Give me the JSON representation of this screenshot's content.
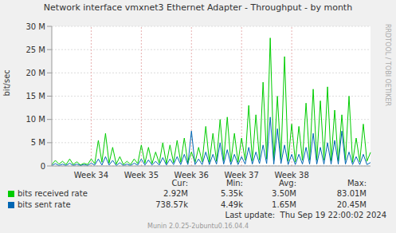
{
  "chart_data": {
    "type": "line",
    "title": "Network interface vmxnet3 Ethernet Adapter - Throughput - by month",
    "y_label": "bit/sec",
    "side_text": "RRDTOOL / TOBI OETIKER",
    "categories": [
      null,
      null,
      null,
      null,
      null,
      null,
      null,
      null,
      null,
      null,
      null,
      "Week 34",
      null,
      null,
      null,
      null,
      null,
      null,
      null,
      null,
      null,
      null,
      null,
      null,
      null,
      "Week 35",
      null,
      null,
      null,
      null,
      null,
      null,
      null,
      null,
      null,
      null,
      null,
      null,
      null,
      "Week 36",
      null,
      null,
      null,
      null,
      null,
      null,
      null,
      null,
      null,
      null,
      null,
      null,
      null,
      "Week 37",
      null,
      null,
      null,
      null,
      null,
      null,
      null,
      null,
      null,
      null,
      null,
      null,
      null,
      "Week 38",
      null,
      null,
      null,
      null,
      null,
      null,
      null,
      null,
      null,
      null,
      null,
      null,
      null,
      null,
      null,
      null,
      null,
      null,
      null,
      null,
      null,
      null
    ],
    "series": [
      {
        "name": "bits received rate",
        "color": "#00cc00",
        "values": [
          300000,
          1200000,
          400000,
          1000000,
          300000,
          1500000,
          300000,
          900000,
          200000,
          600000,
          300000,
          1500000,
          500000,
          5500000,
          800000,
          7000000,
          600000,
          4000000,
          400000,
          2000000,
          300000,
          1000000,
          300000,
          1500000,
          500000,
          4500000,
          600000,
          4000000,
          500000,
          3000000,
          600000,
          5000000,
          500000,
          4500000,
          700000,
          5500000,
          800000,
          6000000,
          600000,
          3000000,
          700000,
          4000000,
          900000,
          8500000,
          800000,
          7000000,
          1000000,
          10000000,
          1100000,
          10500000,
          900000,
          7000000,
          800000,
          6000000,
          1200000,
          13000000,
          1100000,
          11000000,
          1300000,
          18000000,
          1500000,
          27500000,
          1200000,
          15000000,
          1400000,
          23500000,
          1000000,
          9000000,
          900000,
          8500000,
          1200000,
          13500000,
          1300000,
          16500000,
          1200000,
          14000000,
          1300000,
          17000000,
          1100000,
          12000000,
          1000000,
          11000000,
          1200000,
          15000000,
          800000,
          6000000,
          900000,
          9000000,
          1000000,
          2920000
        ]
      },
      {
        "name": "bits sent rate",
        "color": "#0066b3",
        "values": [
          100000,
          500000,
          100000,
          400000,
          100000,
          600000,
          100000,
          400000,
          100000,
          300000,
          100000,
          600000,
          200000,
          1500000,
          200000,
          2000000,
          200000,
          1200000,
          100000,
          700000,
          100000,
          400000,
          100000,
          600000,
          200000,
          1500000,
          200000,
          1300000,
          200000,
          1000000,
          200000,
          1800000,
          200000,
          1500000,
          300000,
          2000000,
          300000,
          2500000,
          300000,
          7500000,
          300000,
          1500000,
          300000,
          3000000,
          300000,
          2500000,
          400000,
          5000000,
          400000,
          3500000,
          300000,
          2500000,
          300000,
          2000000,
          400000,
          4000000,
          400000,
          3000000,
          500000,
          4500000,
          500000,
          10500000,
          400000,
          8000000,
          500000,
          4500000,
          300000,
          2500000,
          300000,
          2500000,
          400000,
          4000000,
          400000,
          7000000,
          400000,
          4000000,
          400000,
          5000000,
          400000,
          5500000,
          400000,
          7500000,
          400000,
          3000000,
          300000,
          2000000,
          300000,
          2500000,
          300000,
          738570
        ]
      }
    ],
    "ylim": [
      0,
      30000000
    ],
    "yticks": [
      0,
      {
        "value": 5000000,
        "label": "5 M"
      },
      {
        "value": 10000000,
        "label": "10 M"
      },
      {
        "value": 15000000,
        "label": "15 M"
      },
      {
        "value": 20000000,
        "label": "20 M"
      },
      {
        "value": 25000000,
        "label": "25 M"
      },
      {
        "value": 30000000,
        "label": "30 M"
      }
    ],
    "grid": true,
    "legend_table": {
      "columns": [
        "Cur:",
        "Min:",
        "Avg:",
        "Max:"
      ],
      "rows": [
        [
          "2.92M",
          "5.35k",
          "3.50M",
          "83.01M"
        ],
        [
          "738.57k",
          "4.49k",
          "1.65M",
          "20.45M"
        ]
      ]
    },
    "last_update": "Last update:  Thu Sep 19 22:00:02 2024",
    "footer": "Munin 2.0.25-2ubuntu0.16.04.4"
  }
}
